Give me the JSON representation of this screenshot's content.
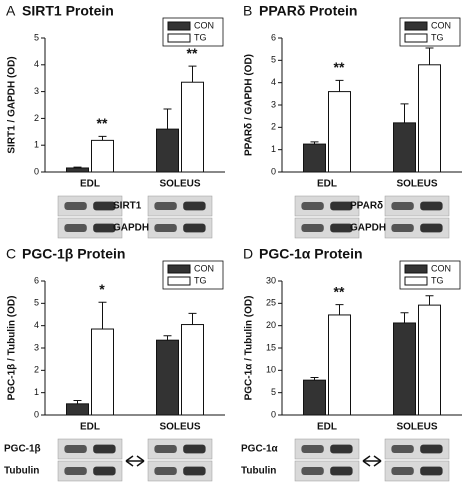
{
  "chart_data": [
    {
      "type": "bar",
      "letter": "A",
      "title": "SIRT1 Protein",
      "y_label": "SIRT1 / GAPDH (OD)",
      "categories": [
        "EDL",
        "SOLEUS"
      ],
      "series": [
        {
          "name": "CON",
          "color": "#333333",
          "values": [
            0.15,
            1.6
          ],
          "errors": [
            0.03,
            0.75
          ]
        },
        {
          "name": "TG",
          "color": "#ffffff",
          "values": [
            1.18,
            3.35
          ],
          "errors": [
            0.15,
            0.6
          ]
        }
      ],
      "ylim": [
        0,
        5
      ],
      "yticks": [
        0,
        1,
        2,
        3,
        4,
        5
      ],
      "legend": "top-right",
      "annotations": [
        {
          "text": "**",
          "category": "EDL"
        },
        {
          "text": "**",
          "category": "SOLEUS"
        }
      ],
      "blot_labels": [
        "SIRT1",
        "GAPDH"
      ]
    },
    {
      "type": "bar",
      "letter": "B",
      "title": "PPARδ Protein",
      "y_label": "PPARδ / GAPDH (OD)",
      "categories": [
        "EDL",
        "SOLEUS"
      ],
      "series": [
        {
          "name": "CON",
          "color": "#333333",
          "values": [
            1.25,
            2.2
          ],
          "errors": [
            0.1,
            0.85
          ]
        },
        {
          "name": "TG",
          "color": "#ffffff",
          "values": [
            3.6,
            4.8
          ],
          "errors": [
            0.5,
            0.75
          ]
        }
      ],
      "ylim": [
        0,
        6
      ],
      "yticks": [
        0,
        1,
        2,
        3,
        4,
        5,
        6
      ],
      "legend": "top-right",
      "annotations": [
        {
          "text": "**",
          "category": "EDL"
        }
      ],
      "blot_labels": [
        "PPARδ",
        "GAPDH"
      ]
    },
    {
      "type": "bar",
      "letter": "C",
      "title": "PGC-1β Protein",
      "y_label": "PGC-1β / Tubulin (OD)",
      "categories": [
        "EDL",
        "SOLEUS"
      ],
      "series": [
        {
          "name": "CON",
          "color": "#333333",
          "values": [
            0.5,
            3.35
          ],
          "errors": [
            0.15,
            0.2
          ]
        },
        {
          "name": "TG",
          "color": "#ffffff",
          "values": [
            3.85,
            4.05
          ],
          "errors": [
            1.2,
            0.5
          ]
        }
      ],
      "ylim": [
        0,
        6
      ],
      "yticks": [
        0,
        1,
        2,
        3,
        4,
        5,
        6
      ],
      "legend": "top-right",
      "annotations": [
        {
          "text": "*",
          "category": "EDL"
        }
      ],
      "blot_labels": [
        "PGC-1β",
        "Tubulin"
      ]
    },
    {
      "type": "bar",
      "letter": "D",
      "title": "PGC-1α Protein",
      "y_label": "PGC-1α / Tubulin (OD)",
      "categories": [
        "EDL",
        "SOLEUS"
      ],
      "series": [
        {
          "name": "CON",
          "color": "#333333",
          "values": [
            7.8,
            20.6
          ],
          "errors": [
            0.6,
            2.3
          ]
        },
        {
          "name": "TG",
          "color": "#ffffff",
          "values": [
            22.4,
            24.6
          ],
          "errors": [
            2.3,
            2.1
          ]
        }
      ],
      "ylim": [
        0,
        30
      ],
      "yticks": [
        0,
        5,
        10,
        15,
        20,
        25,
        30
      ],
      "legend": "top-right",
      "annotations": [
        {
          "text": "**",
          "category": "EDL"
        }
      ],
      "blot_labels": [
        "PGC-1α",
        "Tubulin"
      ]
    }
  ]
}
